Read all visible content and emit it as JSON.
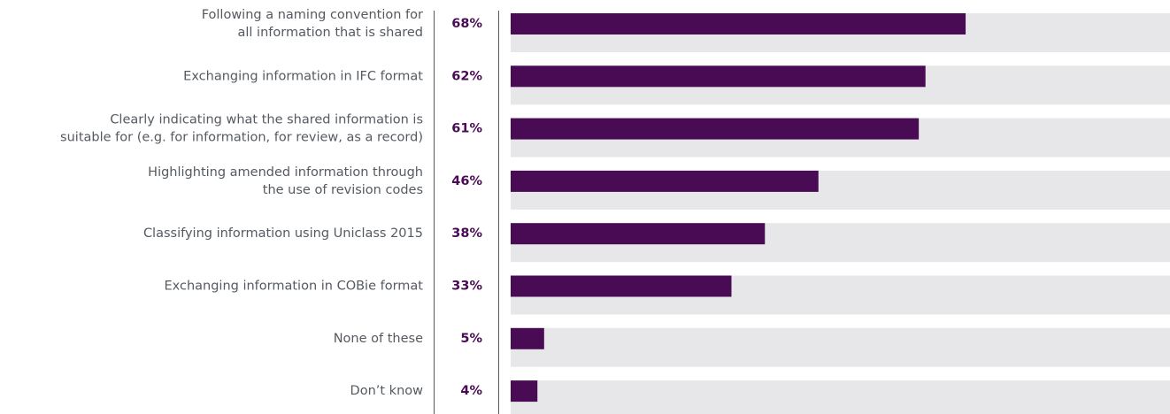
{
  "chart_data": {
    "type": "bar",
    "orientation": "horizontal",
    "categories": [
      [
        "Following a naming convention for",
        "all information that is shared"
      ],
      [
        "Exchanging information in IFC format"
      ],
      [
        "Clearly indicating what the shared information is",
        "suitable for (e.g. for information, for review, as a record)"
      ],
      [
        "Highlighting amended information through",
        "the use of revision codes"
      ],
      [
        "Classifying information using Uniclass 2015"
      ],
      [
        "Exchanging information in COBie format"
      ],
      [
        "None of these"
      ],
      [
        "Don’t know"
      ]
    ],
    "values": [
      68,
      62,
      61,
      46,
      38,
      33,
      5,
      4
    ],
    "value_labels": [
      "68%",
      "62%",
      "61%",
      "46%",
      "38%",
      "33%",
      "5%",
      "4%"
    ],
    "color": "#4a0b55",
    "xlim": [
      0,
      100
    ]
  }
}
